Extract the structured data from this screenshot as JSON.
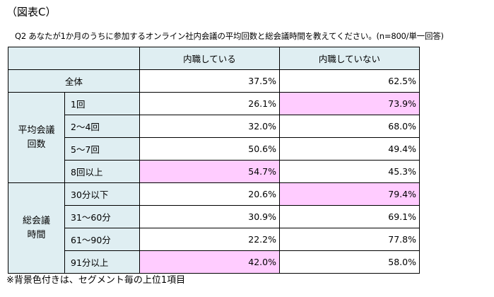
{
  "figure_label": "（図表C）",
  "question": "Q2 あなたが1か月のうちに参加するオンライン社内会議の平均回数と総会議時間を教えてください。(n=800/単一回答)",
  "note": "※背景色付きは、セグメント毎の上位1項目",
  "table": {
    "columns": [
      "内職している",
      "内職していない"
    ],
    "total": {
      "label": "全体",
      "values": [
        "37.5%",
        "62.5%"
      ]
    },
    "groups": [
      {
        "label_line1": "平均会議",
        "label_line2": "回数",
        "rows": [
          {
            "label": "1回",
            "values": [
              "26.1%",
              "73.9%"
            ]
          },
          {
            "label": "2～4回",
            "values": [
              "32.0%",
              "68.0%"
            ]
          },
          {
            "label": "5～7回",
            "values": [
              "50.6%",
              "49.4%"
            ]
          },
          {
            "label": "8回以上",
            "values": [
              "54.7%",
              "45.3%"
            ]
          }
        ]
      },
      {
        "label_line1": "総会議",
        "label_line2": "時間",
        "rows": [
          {
            "label": "30分以下",
            "values": [
              "20.6%",
              "79.4%"
            ]
          },
          {
            "label": "31～60分",
            "values": [
              "30.9%",
              "69.1%"
            ]
          },
          {
            "label": "61～90分",
            "values": [
              "22.2%",
              "77.8%"
            ]
          },
          {
            "label": "91分以上",
            "values": [
              "42.0%",
              "58.0%"
            ]
          }
        ]
      }
    ],
    "highlight_color": "#ffccff",
    "header_color": "#dfeef2"
  },
  "chart_data": {
    "type": "table",
    "title": "（図表C）",
    "columns": [
      "内職している",
      "内職していない"
    ],
    "rows": [
      {
        "group": "",
        "label": "全体",
        "values": [
          37.5,
          62.5
        ],
        "highlight": []
      },
      {
        "group": "平均会議回数",
        "label": "1回",
        "values": [
          26.1,
          73.9
        ],
        "highlight": [
          1
        ]
      },
      {
        "group": "平均会議回数",
        "label": "2～4回",
        "values": [
          32.0,
          68.0
        ],
        "highlight": []
      },
      {
        "group": "平均会議回数",
        "label": "5～7回",
        "values": [
          50.6,
          49.4
        ],
        "highlight": []
      },
      {
        "group": "平均会議回数",
        "label": "8回以上",
        "values": [
          54.7,
          45.3
        ],
        "highlight": [
          0
        ]
      },
      {
        "group": "総会議時間",
        "label": "30分以下",
        "values": [
          20.6,
          79.4
        ],
        "highlight": [
          1
        ]
      },
      {
        "group": "総会議時間",
        "label": "31～60分",
        "values": [
          30.9,
          69.1
        ],
        "highlight": []
      },
      {
        "group": "総会議時間",
        "label": "61～90分",
        "values": [
          22.2,
          77.8
        ],
        "highlight": []
      },
      {
        "group": "総会議時間",
        "label": "91分以上",
        "values": [
          42.0,
          58.0
        ],
        "highlight": [
          0
        ]
      }
    ]
  }
}
